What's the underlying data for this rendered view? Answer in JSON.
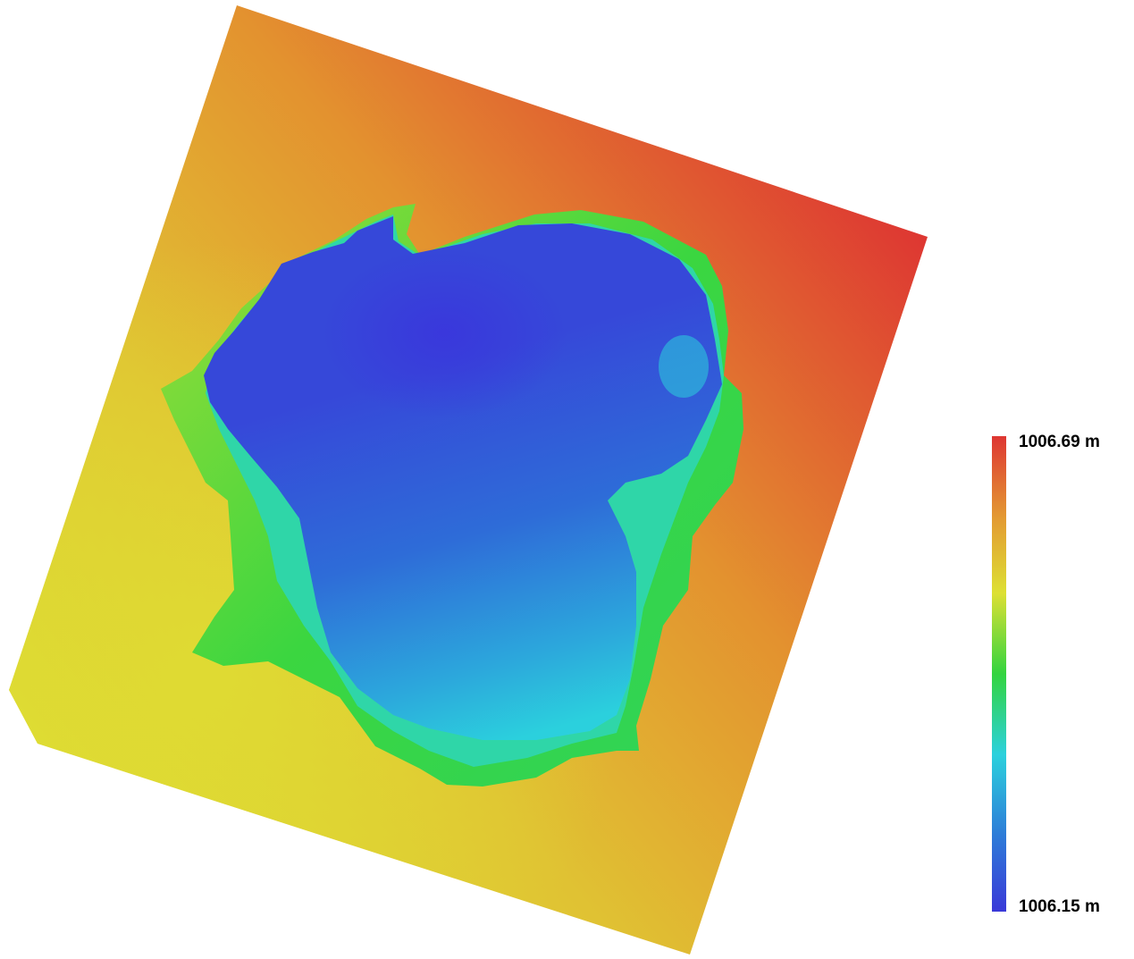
{
  "legend": {
    "max_label": "1006.69 m",
    "min_label": "1006.15 m",
    "max_value": 1006.69,
    "min_value": 1006.15,
    "unit": "m",
    "colors": [
      "#3a39d8",
      "#2d7bd8",
      "#2bd1dd",
      "#33d43f",
      "#dde033",
      "#e39932",
      "#de3632"
    ]
  }
}
